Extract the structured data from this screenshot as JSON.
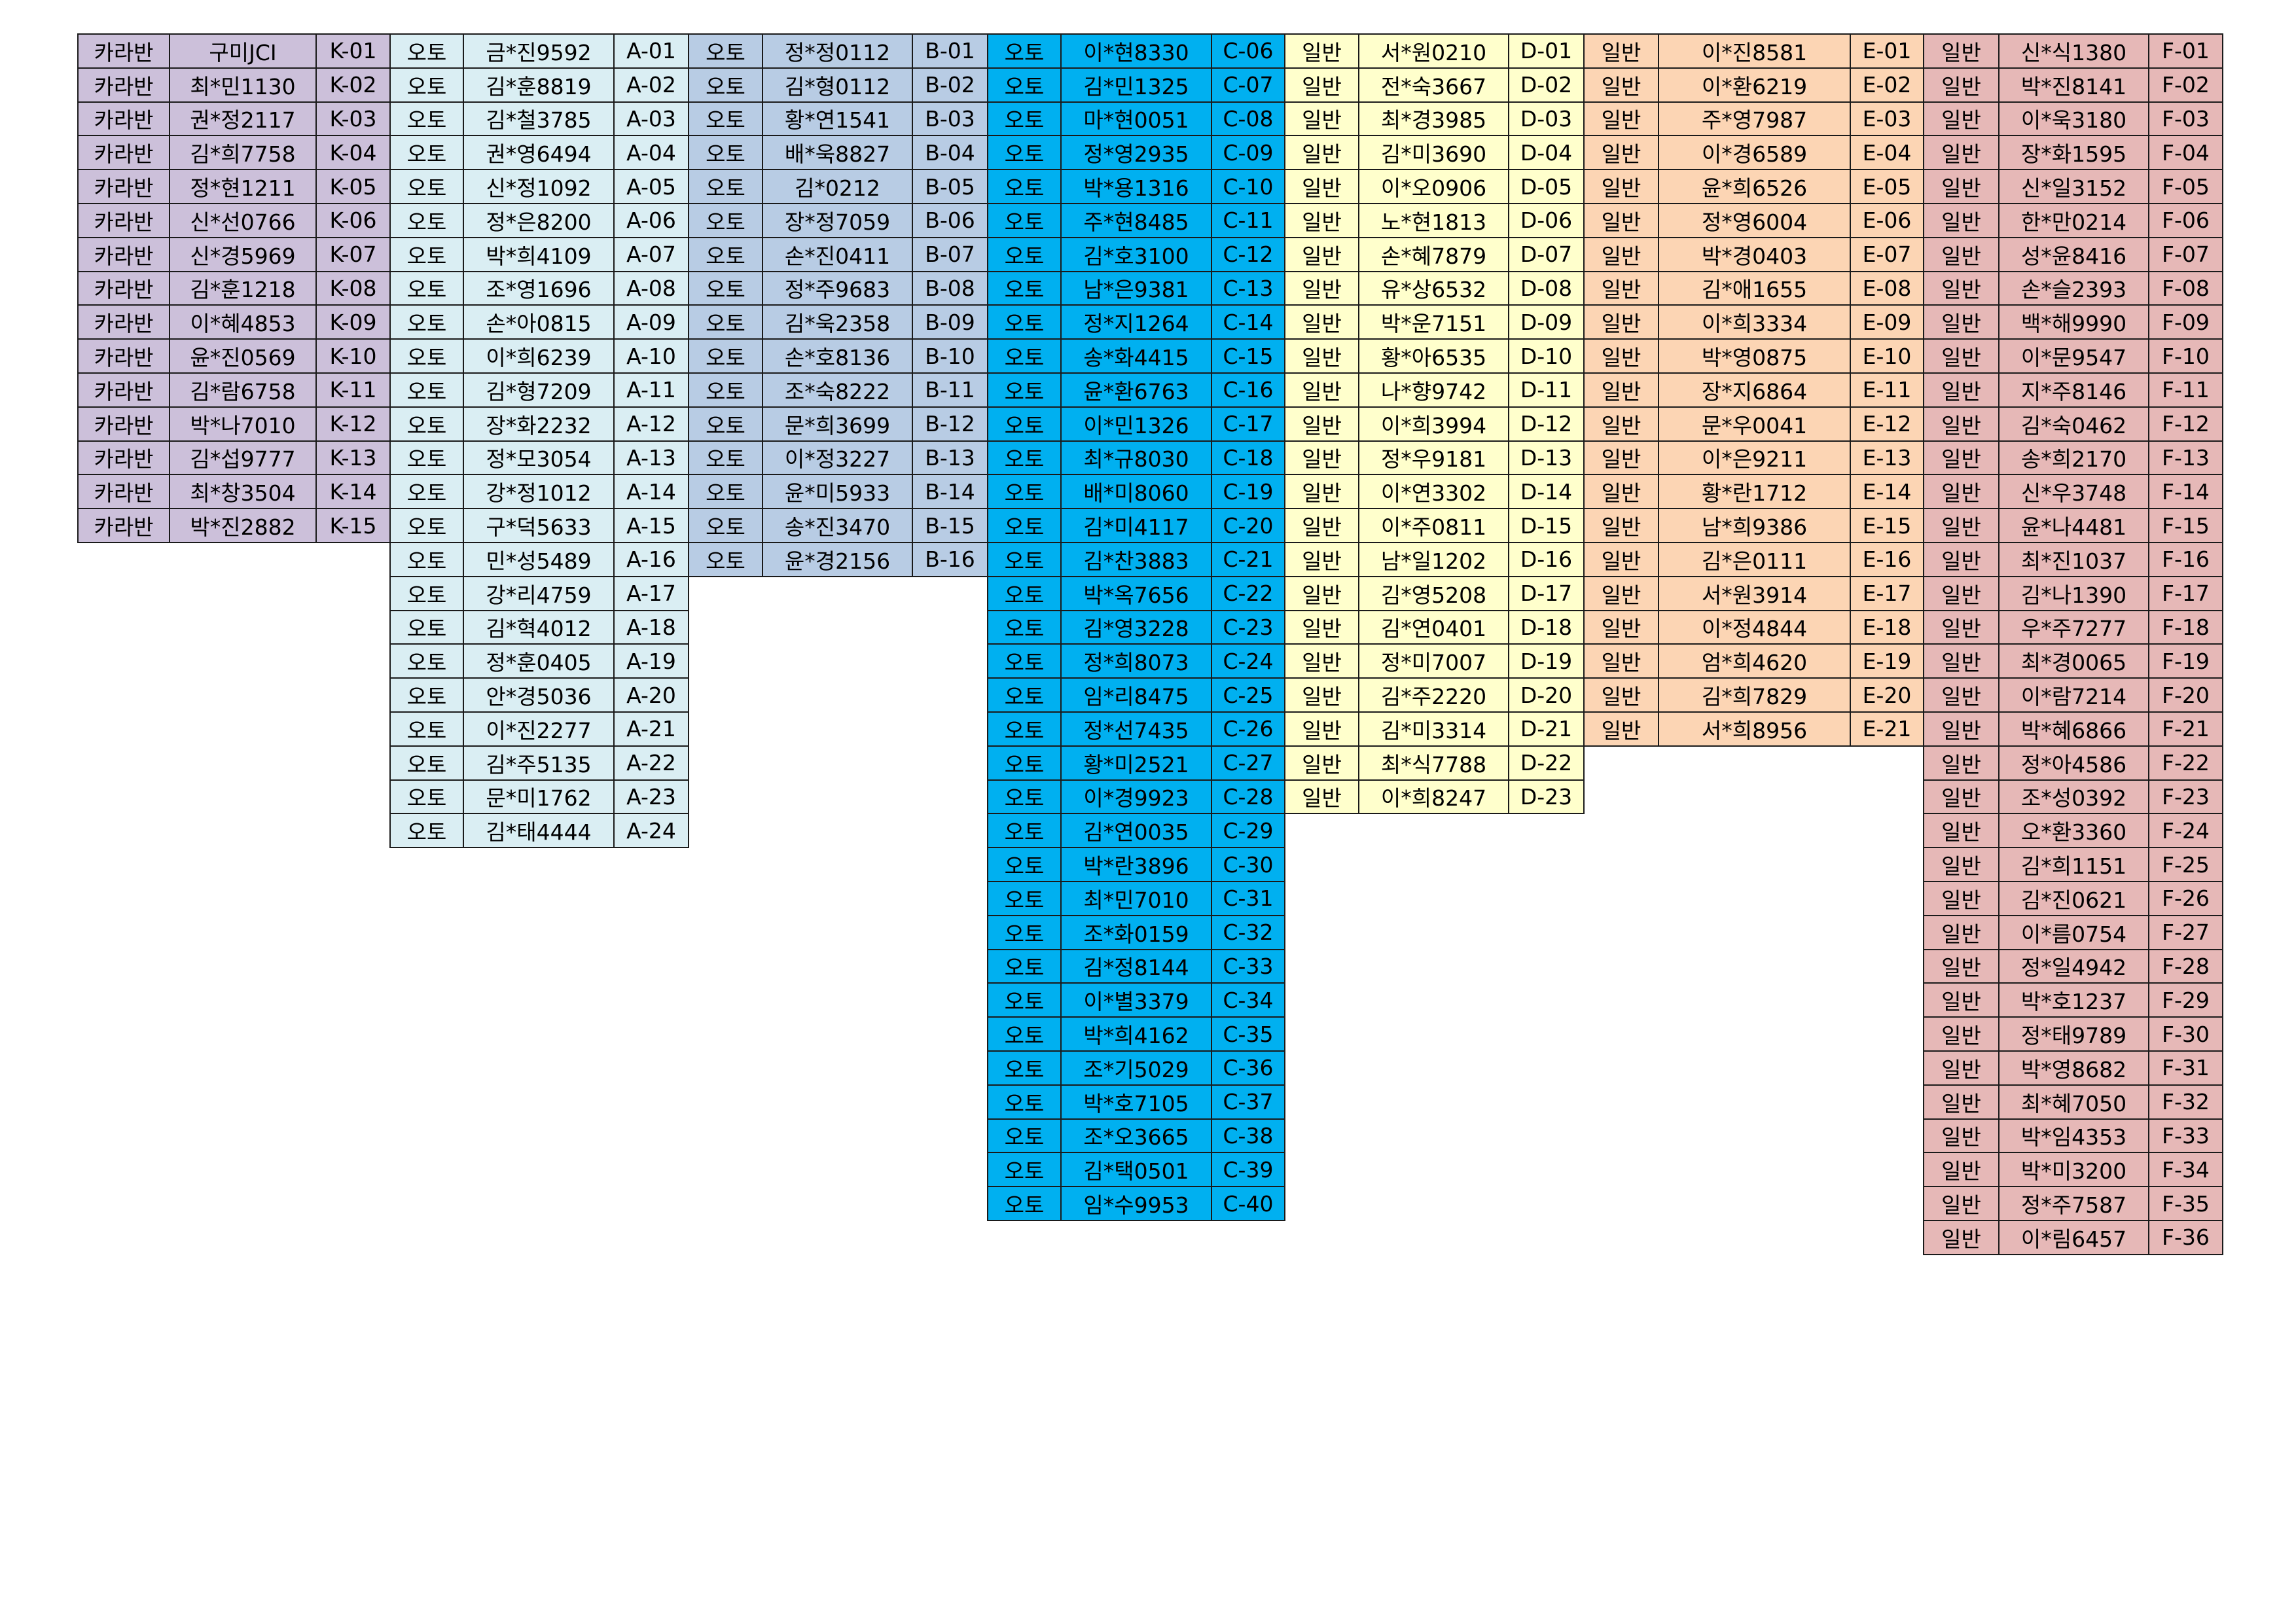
{
  "groups": [
    {
      "color": "#ccc0da",
      "rows": [
        [
          "카라반",
          "구미JCI",
          "K-01"
        ],
        [
          "카라반",
          "최*민1130",
          "K-02"
        ],
        [
          "카라반",
          "권*정2117",
          "K-03"
        ],
        [
          "카라반",
          "김*희7758",
          "K-04"
        ],
        [
          "카라반",
          "정*현1211",
          "K-05"
        ],
        [
          "카라반",
          "신*선0766",
          "K-06"
        ],
        [
          "카라반",
          "신*경5969",
          "K-07"
        ],
        [
          "카라반",
          "김*훈1218",
          "K-08"
        ],
        [
          "카라반",
          "이*혜4853",
          "K-09"
        ],
        [
          "카라반",
          "윤*진0569",
          "K-10"
        ],
        [
          "카라반",
          "김*람6758",
          "K-11"
        ],
        [
          "카라반",
          "박*나7010",
          "K-12"
        ],
        [
          "카라반",
          "김*섭9777",
          "K-13"
        ],
        [
          "카라반",
          "최*창3504",
          "K-14"
        ],
        [
          "카라반",
          "박*진2882",
          "K-15"
        ]
      ]
    },
    {
      "color": "#daeef3",
      "rows": [
        [
          "오토",
          "금*진9592",
          "A-01"
        ],
        [
          "오토",
          "김*훈8819",
          "A-02"
        ],
        [
          "오토",
          "김*철3785",
          "A-03"
        ],
        [
          "오토",
          "권*영6494",
          "A-04"
        ],
        [
          "오토",
          "신*정1092",
          "A-05"
        ],
        [
          "오토",
          "정*은8200",
          "A-06"
        ],
        [
          "오토",
          "박*희4109",
          "A-07"
        ],
        [
          "오토",
          "조*영1696",
          "A-08"
        ],
        [
          "오토",
          "손*아0815",
          "A-09"
        ],
        [
          "오토",
          "이*희6239",
          "A-10"
        ],
        [
          "오토",
          "김*형7209",
          "A-11"
        ],
        [
          "오토",
          "장*화2232",
          "A-12"
        ],
        [
          "오토",
          "정*모3054",
          "A-13"
        ],
        [
          "오토",
          "강*정1012",
          "A-14"
        ],
        [
          "오토",
          "구*덕5633",
          "A-15"
        ],
        [
          "오토",
          "민*성5489",
          "A-16"
        ],
        [
          "오토",
          "강*리4759",
          "A-17"
        ],
        [
          "오토",
          "김*혁4012",
          "A-18"
        ],
        [
          "오토",
          "정*훈0405",
          "A-19"
        ],
        [
          "오토",
          "안*경5036",
          "A-20"
        ],
        [
          "오토",
          "이*진2277",
          "A-21"
        ],
        [
          "오토",
          "김*주5135",
          "A-22"
        ],
        [
          "오토",
          "문*미1762",
          "A-23"
        ],
        [
          "오토",
          "김*태4444",
          "A-24"
        ]
      ]
    },
    {
      "color": "#b8cce4",
      "rows": [
        [
          "오토",
          "정*정0112",
          "B-01"
        ],
        [
          "오토",
          "김*형0112",
          "B-02"
        ],
        [
          "오토",
          "황*연1541",
          "B-03"
        ],
        [
          "오토",
          "배*욱8827",
          "B-04"
        ],
        [
          "오토",
          "김*0212",
          "B-05"
        ],
        [
          "오토",
          "장*정7059",
          "B-06"
        ],
        [
          "오토",
          "손*진0411",
          "B-07"
        ],
        [
          "오토",
          "정*주9683",
          "B-08"
        ],
        [
          "오토",
          "김*욱2358",
          "B-09"
        ],
        [
          "오토",
          "손*호8136",
          "B-10"
        ],
        [
          "오토",
          "조*숙8222",
          "B-11"
        ],
        [
          "오토",
          "문*희3699",
          "B-12"
        ],
        [
          "오토",
          "이*정3227",
          "B-13"
        ],
        [
          "오토",
          "윤*미5933",
          "B-14"
        ],
        [
          "오토",
          "송*진3470",
          "B-15"
        ],
        [
          "오토",
          "윤*경2156",
          "B-16"
        ]
      ]
    },
    {
      "color": "#00b0f0",
      "rows": [
        [
          "오토",
          "이*현8330",
          "C-06"
        ],
        [
          "오토",
          "김*민1325",
          "C-07"
        ],
        [
          "오토",
          "마*현0051",
          "C-08"
        ],
        [
          "오토",
          "정*영2935",
          "C-09"
        ],
        [
          "오토",
          "박*용1316",
          "C-10"
        ],
        [
          "오토",
          "주*현8485",
          "C-11"
        ],
        [
          "오토",
          "김*호3100",
          "C-12"
        ],
        [
          "오토",
          "남*은9381",
          "C-13"
        ],
        [
          "오토",
          "정*지1264",
          "C-14"
        ],
        [
          "오토",
          "송*화4415",
          "C-15"
        ],
        [
          "오토",
          "윤*환6763",
          "C-16"
        ],
        [
          "오토",
          "이*민1326",
          "C-17"
        ],
        [
          "오토",
          "최*규8030",
          "C-18"
        ],
        [
          "오토",
          "배*미8060",
          "C-19"
        ],
        [
          "오토",
          "김*미4117",
          "C-20"
        ],
        [
          "오토",
          "김*찬3883",
          "C-21"
        ],
        [
          "오토",
          "박*옥7656",
          "C-22"
        ],
        [
          "오토",
          "김*영3228",
          "C-23"
        ],
        [
          "오토",
          "정*희8073",
          "C-24"
        ],
        [
          "오토",
          "임*리8475",
          "C-25"
        ],
        [
          "오토",
          "정*선7435",
          "C-26"
        ],
        [
          "오토",
          "황*미2521",
          "C-27"
        ],
        [
          "오토",
          "이*경9923",
          "C-28"
        ],
        [
          "오토",
          "김*연0035",
          "C-29"
        ],
        [
          "오토",
          "박*란3896",
          "C-30"
        ],
        [
          "오토",
          "최*민7010",
          "C-31"
        ],
        [
          "오토",
          "조*화0159",
          "C-32"
        ],
        [
          "오토",
          "김*정8144",
          "C-33"
        ],
        [
          "오토",
          "이*별3379",
          "C-34"
        ],
        [
          "오토",
          "박*희4162",
          "C-35"
        ],
        [
          "오토",
          "조*기5029",
          "C-36"
        ],
        [
          "오토",
          "박*호7105",
          "C-37"
        ],
        [
          "오토",
          "조*오3665",
          "C-38"
        ],
        [
          "오토",
          "김*택0501",
          "C-39"
        ],
        [
          "오토",
          "임*수9953",
          "C-40"
        ]
      ]
    },
    {
      "color": "#ffffcc",
      "rows": [
        [
          "일반",
          "서*원0210",
          "D-01"
        ],
        [
          "일반",
          "전*숙3667",
          "D-02"
        ],
        [
          "일반",
          "최*경3985",
          "D-03"
        ],
        [
          "일반",
          "김*미3690",
          "D-04"
        ],
        [
          "일반",
          "이*오0906",
          "D-05"
        ],
        [
          "일반",
          "노*현1813",
          "D-06"
        ],
        [
          "일반",
          "손*혜7879",
          "D-07"
        ],
        [
          "일반",
          "유*상6532",
          "D-08"
        ],
        [
          "일반",
          "박*운7151",
          "D-09"
        ],
        [
          "일반",
          "황*아6535",
          "D-10"
        ],
        [
          "일반",
          "나*향9742",
          "D-11"
        ],
        [
          "일반",
          "이*희3994",
          "D-12"
        ],
        [
          "일반",
          "정*우9181",
          "D-13"
        ],
        [
          "일반",
          "이*연3302",
          "D-14"
        ],
        [
          "일반",
          "이*주0811",
          "D-15"
        ],
        [
          "일반",
          "남*일1202",
          "D-16"
        ],
        [
          "일반",
          "김*영5208",
          "D-17"
        ],
        [
          "일반",
          "김*연0401",
          "D-18"
        ],
        [
          "일반",
          "정*미7007",
          "D-19"
        ],
        [
          "일반",
          "김*주2220",
          "D-20"
        ],
        [
          "일반",
          "김*미3314",
          "D-21"
        ],
        [
          "일반",
          "최*식7788",
          "D-22"
        ],
        [
          "일반",
          "이*희8247",
          "D-23"
        ]
      ]
    },
    {
      "color": "#fcd5b4",
      "rows": [
        [
          "일반",
          "이*진8581",
          "E-01"
        ],
        [
          "일반",
          "이*환6219",
          "E-02"
        ],
        [
          "일반",
          "주*영7987",
          "E-03"
        ],
        [
          "일반",
          "이*경6589",
          "E-04"
        ],
        [
          "일반",
          "윤*희6526",
          "E-05"
        ],
        [
          "일반",
          "정*영6004",
          "E-06"
        ],
        [
          "일반",
          "박*경0403",
          "E-07"
        ],
        [
          "일반",
          "김*애1655",
          "E-08"
        ],
        [
          "일반",
          "이*희3334",
          "E-09"
        ],
        [
          "일반",
          "박*영0875",
          "E-10"
        ],
        [
          "일반",
          "장*지6864",
          "E-11"
        ],
        [
          "일반",
          "문*우0041",
          "E-12"
        ],
        [
          "일반",
          "이*은9211",
          "E-13"
        ],
        [
          "일반",
          "황*란1712",
          "E-14"
        ],
        [
          "일반",
          "남*희9386",
          "E-15"
        ],
        [
          "일반",
          "김*은0111",
          "E-16"
        ],
        [
          "일반",
          "서*원3914",
          "E-17"
        ],
        [
          "일반",
          "이*정4844",
          "E-18"
        ],
        [
          "일반",
          "엄*희4620",
          "E-19"
        ],
        [
          "일반",
          "김*희7829",
          "E-20"
        ],
        [
          "일반",
          "서*희8956",
          "E-21"
        ]
      ]
    },
    {
      "color": "#e6b8b7",
      "rows": [
        [
          "일반",
          "신*식1380",
          "F-01"
        ],
        [
          "일반",
          "박*진8141",
          "F-02"
        ],
        [
          "일반",
          "이*욱3180",
          "F-03"
        ],
        [
          "일반",
          "장*화1595",
          "F-04"
        ],
        [
          "일반",
          "신*일3152",
          "F-05"
        ],
        [
          "일반",
          "한*만0214",
          "F-06"
        ],
        [
          "일반",
          "성*윤8416",
          "F-07"
        ],
        [
          "일반",
          "손*슬2393",
          "F-08"
        ],
        [
          "일반",
          "백*해9990",
          "F-09"
        ],
        [
          "일반",
          "이*문9547",
          "F-10"
        ],
        [
          "일반",
          "지*주8146",
          "F-11"
        ],
        [
          "일반",
          "김*숙0462",
          "F-12"
        ],
        [
          "일반",
          "송*희2170",
          "F-13"
        ],
        [
          "일반",
          "신*우3748",
          "F-14"
        ],
        [
          "일반",
          "윤*나4481",
          "F-15"
        ],
        [
          "일반",
          "최*진1037",
          "F-16"
        ],
        [
          "일반",
          "김*나1390",
          "F-17"
        ],
        [
          "일반",
          "우*주7277",
          "F-18"
        ],
        [
          "일반",
          "최*경0065",
          "F-19"
        ],
        [
          "일반",
          "이*람7214",
          "F-20"
        ],
        [
          "일반",
          "박*혜6866",
          "F-21"
        ],
        [
          "일반",
          "정*아4586",
          "F-22"
        ],
        [
          "일반",
          "조*성0392",
          "F-23"
        ],
        [
          "일반",
          "오*환3360",
          "F-24"
        ],
        [
          "일반",
          "김*희1151",
          "F-25"
        ],
        [
          "일반",
          "김*진0621",
          "F-26"
        ],
        [
          "일반",
          "이*름0754",
          "F-27"
        ],
        [
          "일반",
          "정*일4942",
          "F-28"
        ],
        [
          "일반",
          "박*호1237",
          "F-29"
        ],
        [
          "일반",
          "정*태9789",
          "F-30"
        ],
        [
          "일반",
          "박*영8682",
          "F-31"
        ],
        [
          "일반",
          "최*혜7050",
          "F-32"
        ],
        [
          "일반",
          "박*임4353",
          "F-33"
        ],
        [
          "일반",
          "박*미3200",
          "F-34"
        ],
        [
          "일반",
          "정*주7587",
          "F-35"
        ],
        [
          "일반",
          "이*림6457",
          "F-36"
        ]
      ]
    }
  ]
}
